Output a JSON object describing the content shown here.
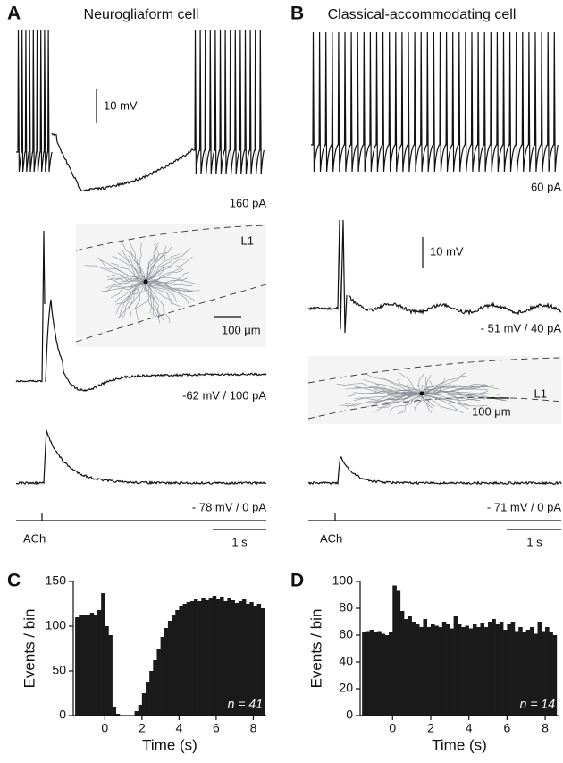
{
  "panels": [
    {
      "letter": "A",
      "title": "Neurogliaform cell",
      "trace_labels": [
        "160 pA",
        "-62 mV / 100 pA",
        "- 78 mV / 0 pA"
      ],
      "voltage_scale": "10 mV",
      "length_scale": "100 μm",
      "layer": "L1",
      "stimulus": "ACh",
      "time_scale": "1 s"
    },
    {
      "letter": "B",
      "title": "Classical-accommodating cell",
      "trace_labels": [
        "60 pA",
        "- 51 mV / 40 pA",
        "- 71 mV / 0 pA"
      ],
      "voltage_scale": "10 mV",
      "length_scale": "100 μm",
      "layer": "L1",
      "stimulus": "ACh",
      "time_scale": "1 s"
    }
  ],
  "chart_data": [
    {
      "type": "histogram",
      "panel": "C",
      "xlabel": "Time (s)",
      "ylabel": "Events / bin",
      "annotation": "n = 41",
      "color": "#1a1a1a",
      "bins": [
        -1.6,
        -1.4,
        -1.2,
        -1.0,
        -0.8,
        -0.6,
        -0.4,
        -0.2,
        0,
        0.2,
        0.4,
        0.6,
        0.8,
        1.0,
        1.2,
        1.4,
        1.6,
        1.8,
        2.0,
        2.2,
        2.4,
        2.6,
        2.8,
        3.0,
        3.2,
        3.4,
        3.6,
        3.8,
        4.0,
        4.2,
        4.4,
        4.6,
        4.8,
        5.0,
        5.2,
        5.4,
        5.6,
        5.8,
        6.0,
        6.2,
        6.4,
        6.6,
        6.8,
        7.0,
        7.2,
        7.4,
        7.6,
        7.8,
        8.0,
        8.2,
        8.4,
        8.6
      ],
      "values": [
        110,
        112,
        113,
        113,
        115,
        112,
        118,
        137,
        100,
        90,
        10,
        2,
        0,
        0,
        0,
        0,
        5,
        12,
        25,
        38,
        50,
        62,
        75,
        88,
        98,
        106,
        112,
        118,
        122,
        125,
        127,
        128,
        130,
        128,
        131,
        129,
        132,
        134,
        130,
        133,
        128,
        132,
        129,
        126,
        128,
        130,
        125,
        127,
        123,
        125,
        120
      ],
      "xlim": [
        -1.7,
        8.7
      ],
      "xticks": [
        0,
        2,
        4,
        6,
        8
      ],
      "ylim": [
        0,
        150
      ],
      "yticks": [
        0,
        50,
        100,
        150
      ]
    },
    {
      "type": "histogram",
      "panel": "D",
      "xlabel": "Time (s)",
      "ylabel": "Events / bin",
      "annotation": "n = 14",
      "color": "#1a1a1a",
      "bins": [
        -1.6,
        -1.4,
        -1.2,
        -1.0,
        -0.8,
        -0.6,
        -0.4,
        -0.2,
        0,
        0.2,
        0.4,
        0.6,
        0.8,
        1.0,
        1.2,
        1.4,
        1.6,
        1.8,
        2.0,
        2.2,
        2.4,
        2.6,
        2.8,
        3.0,
        3.2,
        3.4,
        3.6,
        3.8,
        4.0,
        4.2,
        4.4,
        4.6,
        4.8,
        5.0,
        5.2,
        5.4,
        5.6,
        5.8,
        6.0,
        6.2,
        6.4,
        6.6,
        6.8,
        7.0,
        7.2,
        7.4,
        7.6,
        7.8,
        8.0,
        8.2,
        8.4,
        8.6
      ],
      "values": [
        62,
        63,
        64,
        62,
        63,
        61,
        60,
        62,
        97,
        93,
        78,
        72,
        74,
        70,
        68,
        66,
        72,
        66,
        68,
        67,
        66,
        70,
        68,
        65,
        74,
        68,
        66,
        67,
        65,
        68,
        66,
        69,
        66,
        70,
        72,
        68,
        70,
        64,
        68,
        70,
        63,
        66,
        62,
        64,
        66,
        61,
        70,
        63,
        66,
        62,
        60
      ],
      "xlim": [
        -1.7,
        8.7
      ],
      "xticks": [
        0,
        2,
        4,
        6,
        8
      ],
      "ylim": [
        0,
        100
      ],
      "yticks": [
        0,
        20,
        40,
        60,
        80,
        100
      ]
    }
  ]
}
